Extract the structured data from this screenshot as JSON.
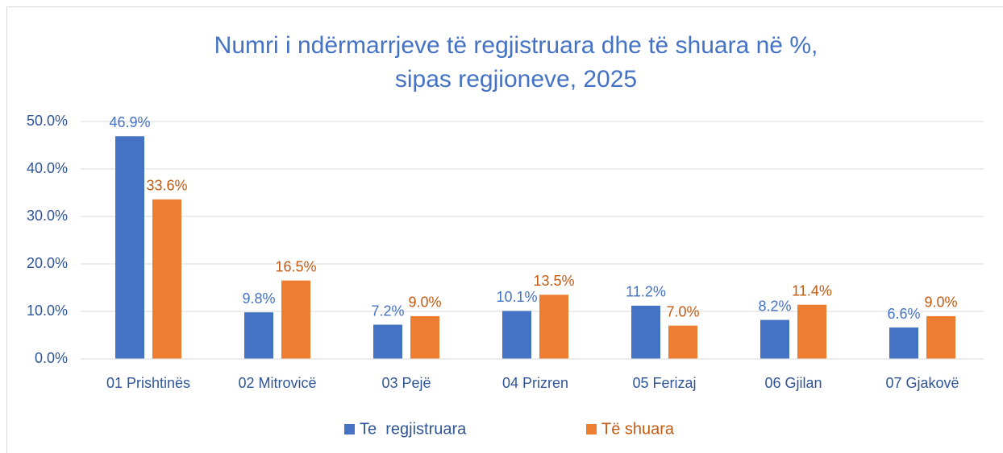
{
  "chart_data": {
    "type": "bar",
    "title": [
      "Numri i ndërmarrjeve të regjistruara dhe të shuara në %,",
      "sipas regjioneve, 2025"
    ],
    "categories": [
      "01 Prishtinës",
      "02 Mitrovicë",
      "03 Pejë",
      "04 Prizren",
      "05 Ferizaj",
      "06 Gjilan",
      "07 Gjakovë"
    ],
    "series": [
      {
        "name": "Te  regjistruara",
        "color": "#4472c4",
        "values": [
          46.9,
          9.8,
          7.2,
          10.1,
          11.2,
          8.2,
          6.6
        ],
        "value_labels": [
          "46.9%",
          "9.8%",
          "7.2%",
          "10.1%",
          "11.2%",
          "8.2%",
          "6.6%"
        ]
      },
      {
        "name": "Të shuara",
        "color": "#ed7d31",
        "values": [
          33.6,
          16.5,
          9.0,
          13.5,
          7.0,
          11.4,
          9.0
        ],
        "value_labels": [
          "33.6%",
          "16.5%",
          "9.0%",
          "13.5%",
          "7.0%",
          "11.4%",
          "9.0%"
        ]
      }
    ],
    "ylim": [
      0,
      50
    ],
    "yticks": [
      {
        "value": 0,
        "label": "0.0%"
      },
      {
        "value": 10,
        "label": "10.0%"
      },
      {
        "value": 20,
        "label": "20.0%"
      },
      {
        "value": 30,
        "label": "30.0%"
      },
      {
        "value": 40,
        "label": "40.0%"
      },
      {
        "value": 50,
        "label": "50.0%"
      }
    ],
    "grid": true,
    "legend": "bottom"
  }
}
